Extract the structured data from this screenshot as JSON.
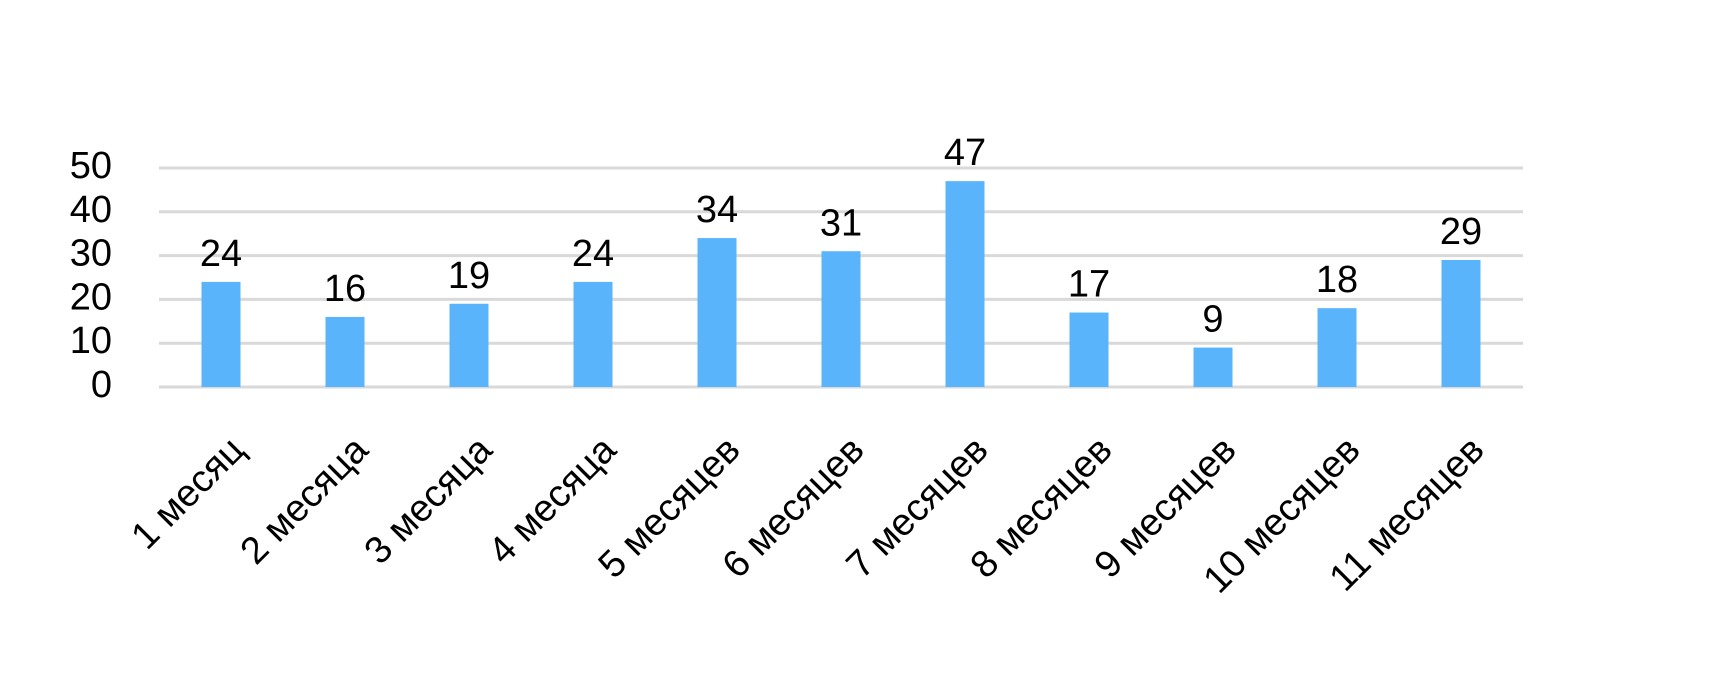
{
  "chart_data": {
    "type": "bar",
    "categories": [
      "1 месяц",
      "2 месяца",
      "3 месяца",
      "4 месяца",
      "5 месяцев",
      "6 месяцев",
      "7 месяцев",
      "8 месяцев",
      "9 месяцев",
      "10 месяцев",
      "11 месяцев"
    ],
    "values": [
      24,
      16,
      19,
      24,
      34,
      31,
      47,
      17,
      9,
      18,
      29
    ],
    "color": "#5ab4fc",
    "ylim": [
      0,
      50
    ],
    "yticks": [
      0,
      10,
      20,
      30,
      40,
      50
    ],
    "grid": true
  }
}
